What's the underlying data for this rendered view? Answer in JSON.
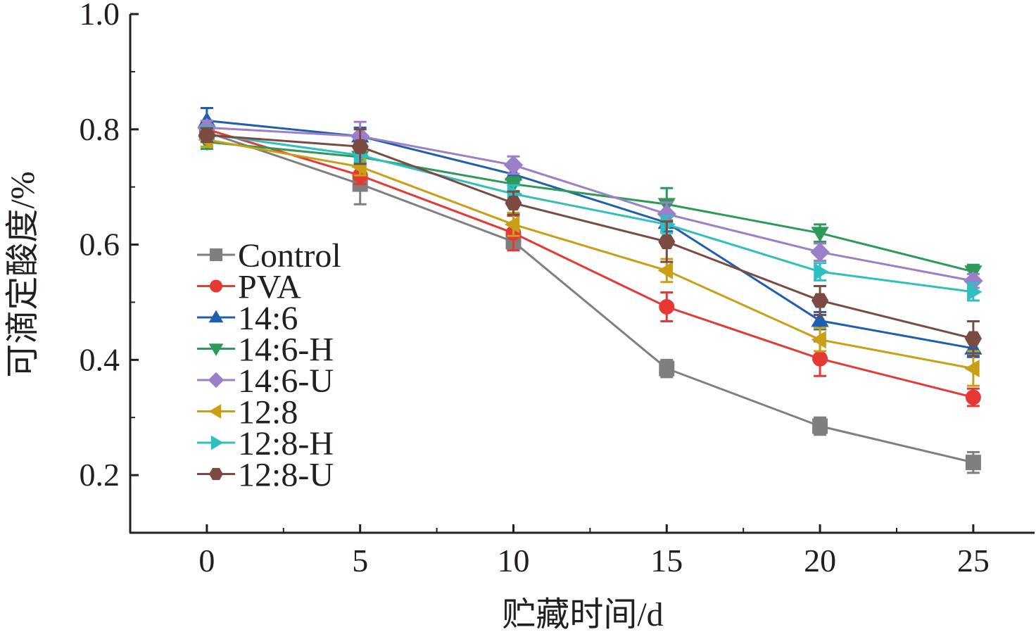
{
  "chart_data": {
    "type": "line",
    "xlabel": "贮藏时间/d",
    "ylabel": "可滴定酸度/%",
    "xlim": [
      -2.5,
      27
    ],
    "ylim": [
      0.1,
      1.0
    ],
    "xticks": [
      0,
      5,
      10,
      15,
      20,
      25
    ],
    "xtick_labels": [
      "0",
      "5",
      "10",
      "15",
      "20",
      "25"
    ],
    "yticks": [
      0.2,
      0.4,
      0.6,
      0.8,
      1.0
    ],
    "ytick_labels": [
      "0.2",
      "0.4",
      "0.6",
      "0.8",
      "1.0"
    ],
    "grid": false,
    "legend_position": "left",
    "x": [
      0,
      5,
      10,
      15,
      20,
      25
    ],
    "series": [
      {
        "name": "Control",
        "color": "#7f7f7f",
        "marker": "square",
        "values": [
          0.795,
          0.705,
          0.605,
          0.385,
          0.285,
          0.222
        ],
        "errors": [
          0.015,
          0.035,
          0.01,
          0.015,
          0.015,
          0.018
        ]
      },
      {
        "name": "PVA",
        "color": "#e53935",
        "marker": "circle",
        "values": [
          0.8,
          0.72,
          0.62,
          0.492,
          0.402,
          0.335
        ],
        "errors": [
          0.012,
          0.015,
          0.03,
          0.025,
          0.03,
          0.015
        ]
      },
      {
        "name": "14:6",
        "color": "#1f5fae",
        "marker": "triangle-up",
        "values": [
          0.815,
          0.788,
          0.722,
          0.638,
          0.468,
          0.42
        ],
        "errors": [
          0.022,
          0.015,
          0.015,
          0.015,
          0.015,
          0.015
        ]
      },
      {
        "name": "14:6-H",
        "color": "#2e9a5a",
        "marker": "triangle-down",
        "values": [
          0.778,
          0.752,
          0.705,
          0.67,
          0.62,
          0.553
        ],
        "errors": [
          0.012,
          0.012,
          0.012,
          0.028,
          0.015,
          0.012
        ]
      },
      {
        "name": "14:6-U",
        "color": "#9b7fc8",
        "marker": "diamond",
        "values": [
          0.803,
          0.788,
          0.738,
          0.653,
          0.587,
          0.537
        ],
        "errors": [
          0.012,
          0.025,
          0.015,
          0.02,
          0.015,
          0.012
        ]
      },
      {
        "name": "12:8",
        "color": "#c9a015",
        "marker": "triangle-left",
        "values": [
          0.782,
          0.735,
          0.635,
          0.555,
          0.435,
          0.385
        ],
        "errors": [
          0.012,
          0.015,
          0.02,
          0.02,
          0.02,
          0.03
        ]
      },
      {
        "name": "12:8-H",
        "color": "#2fbfbf",
        "marker": "triangle-right",
        "values": [
          0.792,
          0.755,
          0.688,
          0.635,
          0.553,
          0.518
        ],
        "errors": [
          0.012,
          0.012,
          0.015,
          0.015,
          0.015,
          0.015
        ]
      },
      {
        "name": "12:8-U",
        "color": "#7b4b42",
        "marker": "hexagon",
        "values": [
          0.79,
          0.77,
          0.672,
          0.605,
          0.503,
          0.437
        ],
        "errors": [
          0.012,
          0.03,
          0.02,
          0.035,
          0.025,
          0.03
        ]
      }
    ]
  }
}
